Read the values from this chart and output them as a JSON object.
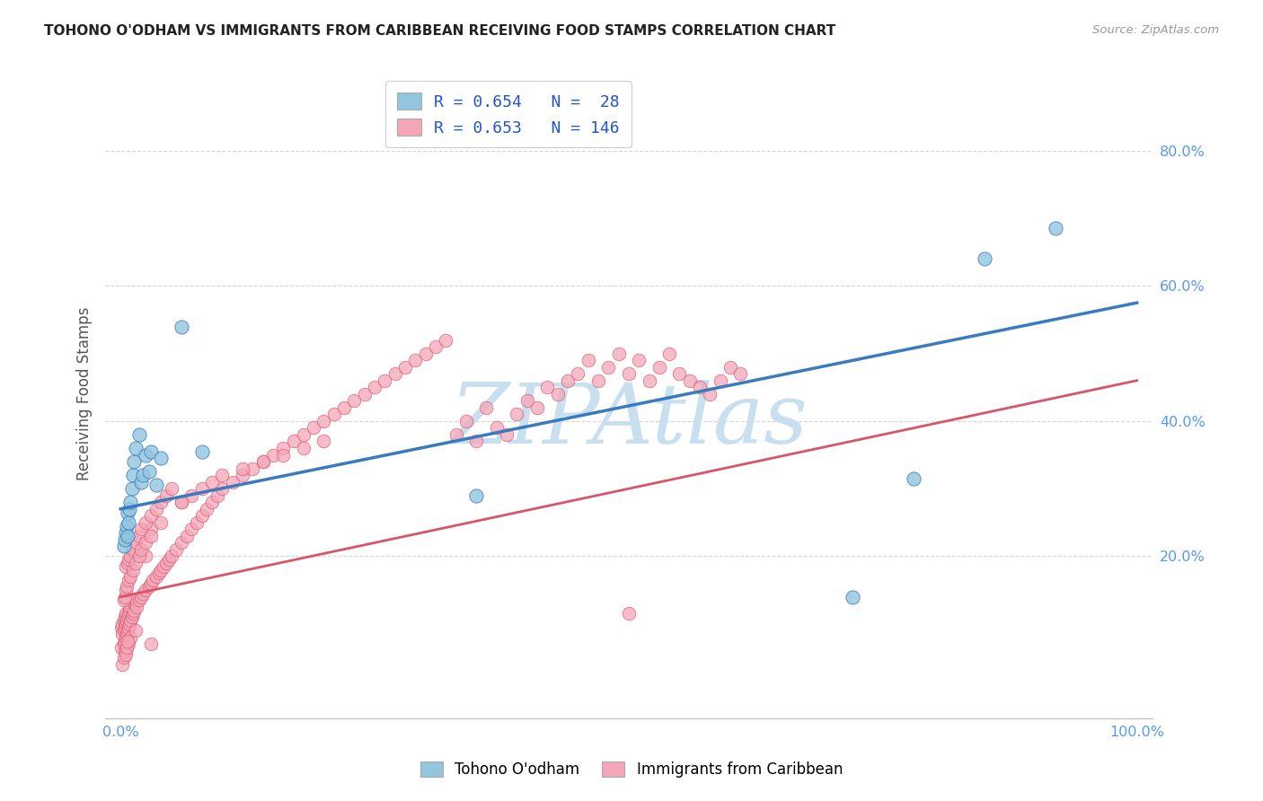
{
  "title": "TOHONO O'ODHAM VS IMMIGRANTS FROM CARIBBEAN RECEIVING FOOD STAMPS CORRELATION CHART",
  "source": "Source: ZipAtlas.com",
  "ylabel": "Receiving Food Stamps",
  "legend_labels": [
    "Tohono O'odham",
    "Immigrants from Caribbean"
  ],
  "series1_label": "R = 0.654   N =  28",
  "series2_label": "R = 0.653   N = 146",
  "color_blue": "#92c5de",
  "color_pink": "#f4a6b8",
  "line_blue": "#3a7abf",
  "line_pink": "#d9536a",
  "watermark_color": "#c8dff0",
  "bg_color": "#ffffff",
  "grid_color": "#cccccc",
  "title_color": "#222222",
  "stat_color": "#2255cc",
  "axis_label_color": "#5599ee",
  "tohono_x": [
    0.003,
    0.004,
    0.005,
    0.006,
    0.007,
    0.007,
    0.008,
    0.009,
    0.01,
    0.011,
    0.012,
    0.013,
    0.015,
    0.018,
    0.02,
    0.022,
    0.025,
    0.028,
    0.03,
    0.035,
    0.04,
    0.06,
    0.08,
    0.35,
    0.72,
    0.78,
    0.85,
    0.92
  ],
  "tohono_y": [
    0.215,
    0.225,
    0.235,
    0.245,
    0.23,
    0.265,
    0.25,
    0.27,
    0.28,
    0.3,
    0.32,
    0.34,
    0.36,
    0.38,
    0.31,
    0.32,
    0.35,
    0.325,
    0.355,
    0.305,
    0.345,
    0.54,
    0.355,
    0.29,
    0.14,
    0.315,
    0.64,
    0.685
  ],
  "carib_x": [
    0.001,
    0.001,
    0.002,
    0.002,
    0.003,
    0.003,
    0.003,
    0.004,
    0.004,
    0.004,
    0.005,
    0.005,
    0.005,
    0.006,
    0.006,
    0.007,
    0.007,
    0.008,
    0.008,
    0.009,
    0.009,
    0.01,
    0.01,
    0.011,
    0.012,
    0.013,
    0.014,
    0.015,
    0.016,
    0.018,
    0.02,
    0.022,
    0.025,
    0.025,
    0.028,
    0.03,
    0.03,
    0.032,
    0.035,
    0.038,
    0.04,
    0.042,
    0.045,
    0.048,
    0.05,
    0.055,
    0.06,
    0.065,
    0.07,
    0.075,
    0.08,
    0.085,
    0.09,
    0.095,
    0.1,
    0.11,
    0.12,
    0.13,
    0.14,
    0.15,
    0.16,
    0.17,
    0.18,
    0.19,
    0.2,
    0.21,
    0.22,
    0.23,
    0.24,
    0.25,
    0.26,
    0.27,
    0.28,
    0.29,
    0.3,
    0.31,
    0.32,
    0.33,
    0.34,
    0.35,
    0.36,
    0.37,
    0.38,
    0.39,
    0.4,
    0.41,
    0.42,
    0.43,
    0.44,
    0.45,
    0.46,
    0.47,
    0.48,
    0.49,
    0.5,
    0.51,
    0.52,
    0.53,
    0.54,
    0.55,
    0.56,
    0.57,
    0.58,
    0.59,
    0.6,
    0.61,
    0.005,
    0.007,
    0.008,
    0.01,
    0.012,
    0.015,
    0.018,
    0.02,
    0.025,
    0.03,
    0.035,
    0.04,
    0.045,
    0.05,
    0.06,
    0.07,
    0.08,
    0.09,
    0.1,
    0.12,
    0.14,
    0.16,
    0.18,
    0.2,
    0.003,
    0.004,
    0.005,
    0.006,
    0.008,
    0.01,
    0.012,
    0.015,
    0.018,
    0.02,
    0.025,
    0.03,
    0.04,
    0.06,
    0.5,
    0.005,
    0.008,
    0.01,
    0.015,
    0.03,
    0.002,
    0.003,
    0.004,
    0.005,
    0.006,
    0.007
  ],
  "carib_y": [
    0.065,
    0.095,
    0.085,
    0.1,
    0.07,
    0.09,
    0.105,
    0.075,
    0.095,
    0.11,
    0.08,
    0.1,
    0.115,
    0.085,
    0.105,
    0.09,
    0.11,
    0.095,
    0.115,
    0.1,
    0.12,
    0.105,
    0.125,
    0.11,
    0.115,
    0.12,
    0.13,
    0.135,
    0.125,
    0.135,
    0.14,
    0.145,
    0.15,
    0.2,
    0.155,
    0.16,
    0.24,
    0.165,
    0.17,
    0.175,
    0.18,
    0.185,
    0.19,
    0.195,
    0.2,
    0.21,
    0.22,
    0.23,
    0.24,
    0.25,
    0.26,
    0.27,
    0.28,
    0.29,
    0.3,
    0.31,
    0.32,
    0.33,
    0.34,
    0.35,
    0.36,
    0.37,
    0.38,
    0.39,
    0.4,
    0.41,
    0.42,
    0.43,
    0.44,
    0.45,
    0.46,
    0.47,
    0.48,
    0.49,
    0.5,
    0.51,
    0.52,
    0.38,
    0.4,
    0.37,
    0.42,
    0.39,
    0.38,
    0.41,
    0.43,
    0.42,
    0.45,
    0.44,
    0.46,
    0.47,
    0.49,
    0.46,
    0.48,
    0.5,
    0.47,
    0.49,
    0.46,
    0.48,
    0.5,
    0.47,
    0.46,
    0.45,
    0.44,
    0.46,
    0.48,
    0.47,
    0.185,
    0.19,
    0.195,
    0.2,
    0.21,
    0.22,
    0.23,
    0.24,
    0.25,
    0.26,
    0.27,
    0.28,
    0.29,
    0.3,
    0.28,
    0.29,
    0.3,
    0.31,
    0.32,
    0.33,
    0.34,
    0.35,
    0.36,
    0.37,
    0.135,
    0.14,
    0.15,
    0.155,
    0.165,
    0.17,
    0.18,
    0.19,
    0.2,
    0.21,
    0.22,
    0.23,
    0.25,
    0.28,
    0.115,
    0.06,
    0.07,
    0.08,
    0.09,
    0.07,
    0.04,
    0.05,
    0.06,
    0.055,
    0.065,
    0.075
  ],
  "tohono_line_x0": 0.0,
  "tohono_line_x1": 1.0,
  "tohono_line_y0": 0.27,
  "tohono_line_y1": 0.575,
  "carib_line_x0": 0.0,
  "carib_line_x1": 1.0,
  "carib_line_y0": 0.14,
  "carib_line_y1": 0.46,
  "xlim_min": -0.015,
  "xlim_max": 1.015,
  "ylim_min": -0.04,
  "ylim_max": 0.92,
  "ytick_positions": [
    0.2,
    0.4,
    0.6,
    0.8
  ],
  "ytick_labels": [
    "20.0%",
    "40.0%",
    "60.0%",
    "80.0%"
  ]
}
